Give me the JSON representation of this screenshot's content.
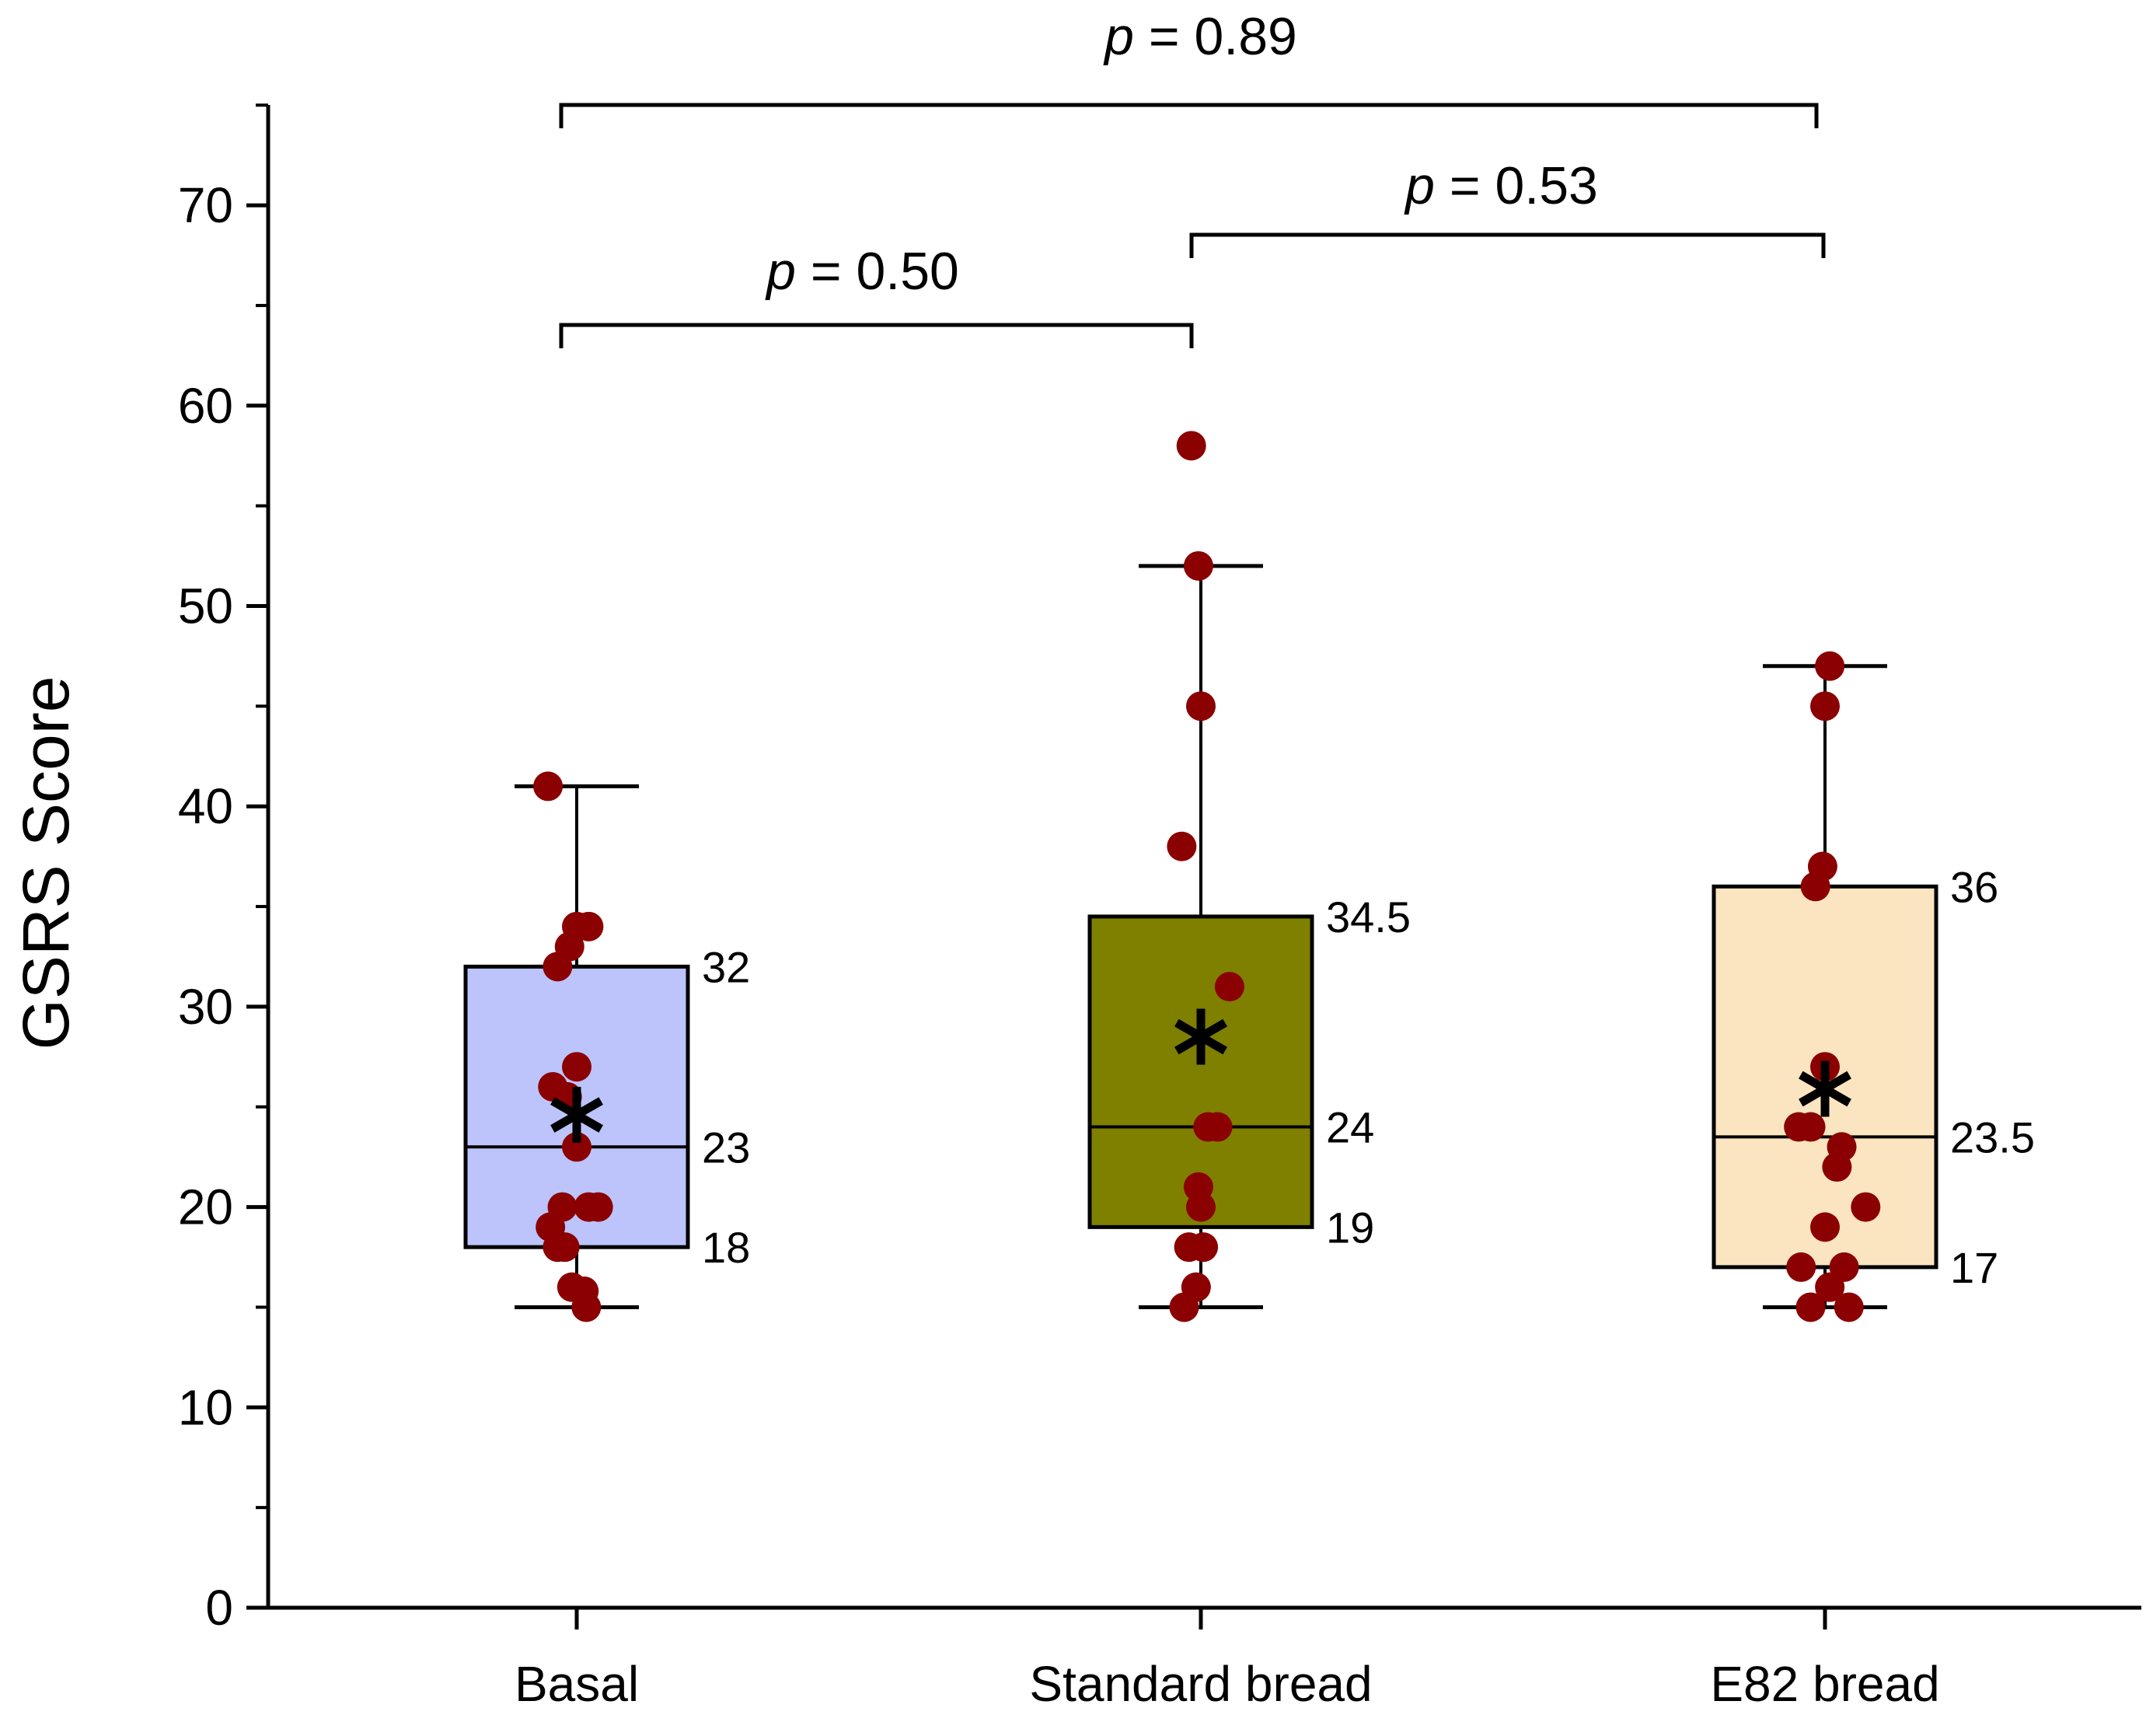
{
  "chart_data": {
    "type": "box",
    "title": "",
    "xlabel": "",
    "ylabel": "GSRS Score",
    "ylim": [
      0,
      75
    ],
    "yticks": [
      0,
      10,
      20,
      30,
      40,
      50,
      60,
      70
    ],
    "categories": [
      "Basal",
      "Standard bread",
      "E82 bread"
    ],
    "boxes": [
      {
        "name": "Basal",
        "color": "#bcc4fb",
        "whisker_low": 15,
        "q1": 18,
        "median": 23,
        "q3": 32,
        "whisker_high": 41,
        "mean": 24.6,
        "labels": {
          "q3": "32",
          "median": "23",
          "q1": "18"
        },
        "points": [
          41,
          34,
          34,
          33,
          32,
          27,
          26,
          25.5,
          23,
          20,
          20,
          20,
          19,
          18,
          18,
          16,
          15.8,
          15
        ],
        "jitter": [
          -0.12,
          0.0,
          0.05,
          -0.03,
          -0.08,
          0.0,
          -0.1,
          -0.04,
          0.0,
          -0.06,
          0.05,
          0.09,
          -0.11,
          -0.08,
          -0.05,
          -0.02,
          0.03,
          0.04
        ]
      },
      {
        "name": "Standard bread",
        "color": "#7f7f00",
        "whisker_low": 15,
        "q1": 19,
        "median": 24,
        "q3": 34.5,
        "whisker_high": 52,
        "mean": 28.5,
        "labels": {
          "q3": "34.5",
          "median": "24",
          "q1": "19"
        },
        "points": [
          58,
          52,
          45,
          38,
          31,
          24,
          24,
          21,
          20,
          18,
          18,
          16,
          15
        ],
        "jitter": [
          -0.04,
          -0.01,
          0.0,
          -0.08,
          0.12,
          0.03,
          0.07,
          -0.01,
          0.0,
          -0.05,
          0.01,
          -0.02,
          -0.07
        ]
      },
      {
        "name": "E82 bread",
        "color": "#fae5c0",
        "whisker_low": 15,
        "q1": 17,
        "median": 23.5,
        "q3": 36,
        "whisker_high": 47,
        "mean": 25.9,
        "labels": {
          "q3": "36",
          "median": "23.5",
          "q1": "17"
        },
        "points": [
          47,
          45,
          37,
          36,
          27,
          24,
          24,
          23,
          22,
          20,
          19,
          17,
          17,
          16,
          15,
          15
        ],
        "jitter": [
          0.02,
          0.0,
          -0.01,
          -0.04,
          0.0,
          -0.11,
          -0.06,
          0.07,
          0.05,
          0.17,
          0.0,
          -0.1,
          0.08,
          0.02,
          -0.06,
          0.1
        ]
      }
    ],
    "comparisons": [
      {
        "from": 0,
        "to": 2,
        "p_prefix": "p",
        "p_text": " = 0.89"
      },
      {
        "from": 0,
        "to": 1,
        "p_prefix": "p",
        "p_text": " = 0.50"
      },
      {
        "from": 1,
        "to": 2,
        "p_prefix": "p",
        "p_text": " = 0.53"
      }
    ],
    "point_color": "#8b0000",
    "mean_marker": "asterisk"
  }
}
